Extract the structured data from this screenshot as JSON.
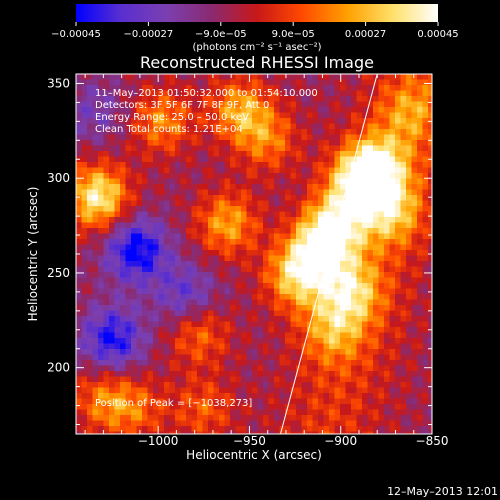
{
  "chart_data": {
    "type": "heatmap",
    "title": "Reconstructed RHESSI Image",
    "xlabel": "Heliocentric X (arcsec)",
    "ylabel": "Heliocentric Y (arcsec)",
    "xlim": [
      -1045,
      -850
    ],
    "ylim": [
      165,
      355
    ],
    "xticks": [
      -1000,
      -950,
      -900,
      -850
    ],
    "yticks": [
      200,
      250,
      300,
      350
    ],
    "xtick_labels": [
      "−1000",
      "−950",
      "−900",
      "−850"
    ],
    "ytick_labels": [
      "200",
      "250",
      "300",
      "350"
    ],
    "colorbar": {
      "ticks": [
        "−0.00045",
        "−0.00027",
        "−9.0e−05",
        "9.0e−05",
        "0.00027",
        "0.00045"
      ],
      "unit_label": "(photons cm⁻² s⁻¹ asec⁻²)",
      "range": [
        -0.00045,
        0.00045
      ],
      "colors": [
        "#0000ff",
        "#5a2fd0",
        "#7b3fb0",
        "#8a2a70",
        "#c81818",
        "#ff4a00",
        "#ffa000",
        "#ffe06a",
        "#ffffff"
      ]
    },
    "annotations": [
      "11–May–2013 01:50:32.000 to 01:54:10.000",
      "Detectors: 3F 5F 6F 7F 8F 9F, Att 0",
      "Energy Range: 25.0 – 50.0 keV",
      "Clean     Total counts: 1.21E+04"
    ],
    "peak_label": "Position of Peak = [−1038,273]",
    "peak": [
      -1038,
      273
    ],
    "limb_line": {
      "x": [
        -933,
        -880
      ],
      "y": [
        165,
        355
      ]
    },
    "hotspots": [
      {
        "x": -1033,
        "y": 290,
        "v": 1.2
      },
      {
        "x": -998,
        "y": 330,
        "v": 0.7
      },
      {
        "x": -978,
        "y": 218,
        "v": 0.6
      },
      {
        "x": -962,
        "y": 276,
        "v": 0.8
      },
      {
        "x": -955,
        "y": 336,
        "v": 0.8
      },
      {
        "x": -940,
        "y": 320,
        "v": 0.6
      },
      {
        "x": -925,
        "y": 248,
        "v": 0.9
      },
      {
        "x": -912,
        "y": 262,
        "v": 1.0
      },
      {
        "x": -903,
        "y": 276,
        "v": 0.9
      },
      {
        "x": -890,
        "y": 298,
        "v": 1.0
      },
      {
        "x": -880,
        "y": 306,
        "v": 0.9
      },
      {
        "x": -872,
        "y": 282,
        "v": 0.7
      },
      {
        "x": -895,
        "y": 240,
        "v": 0.8
      },
      {
        "x": -905,
        "y": 220,
        "v": 0.6
      },
      {
        "x": -1030,
        "y": 183,
        "v": 0.6
      },
      {
        "x": -1012,
        "y": 178,
        "v": 0.5
      },
      {
        "x": -975,
        "y": 178,
        "v": 0.5
      },
      {
        "x": -862,
        "y": 335,
        "v": 0.5
      }
    ],
    "coldspots": [
      {
        "x": -1012,
        "y": 262,
        "v": -1.0
      },
      {
        "x": -1025,
        "y": 215,
        "v": -0.9
      },
      {
        "x": -985,
        "y": 238,
        "v": -0.6
      },
      {
        "x": -1035,
        "y": 335,
        "v": -0.4
      }
    ]
  },
  "footer": {
    "timestamp": "12–May–2013 12:01"
  }
}
